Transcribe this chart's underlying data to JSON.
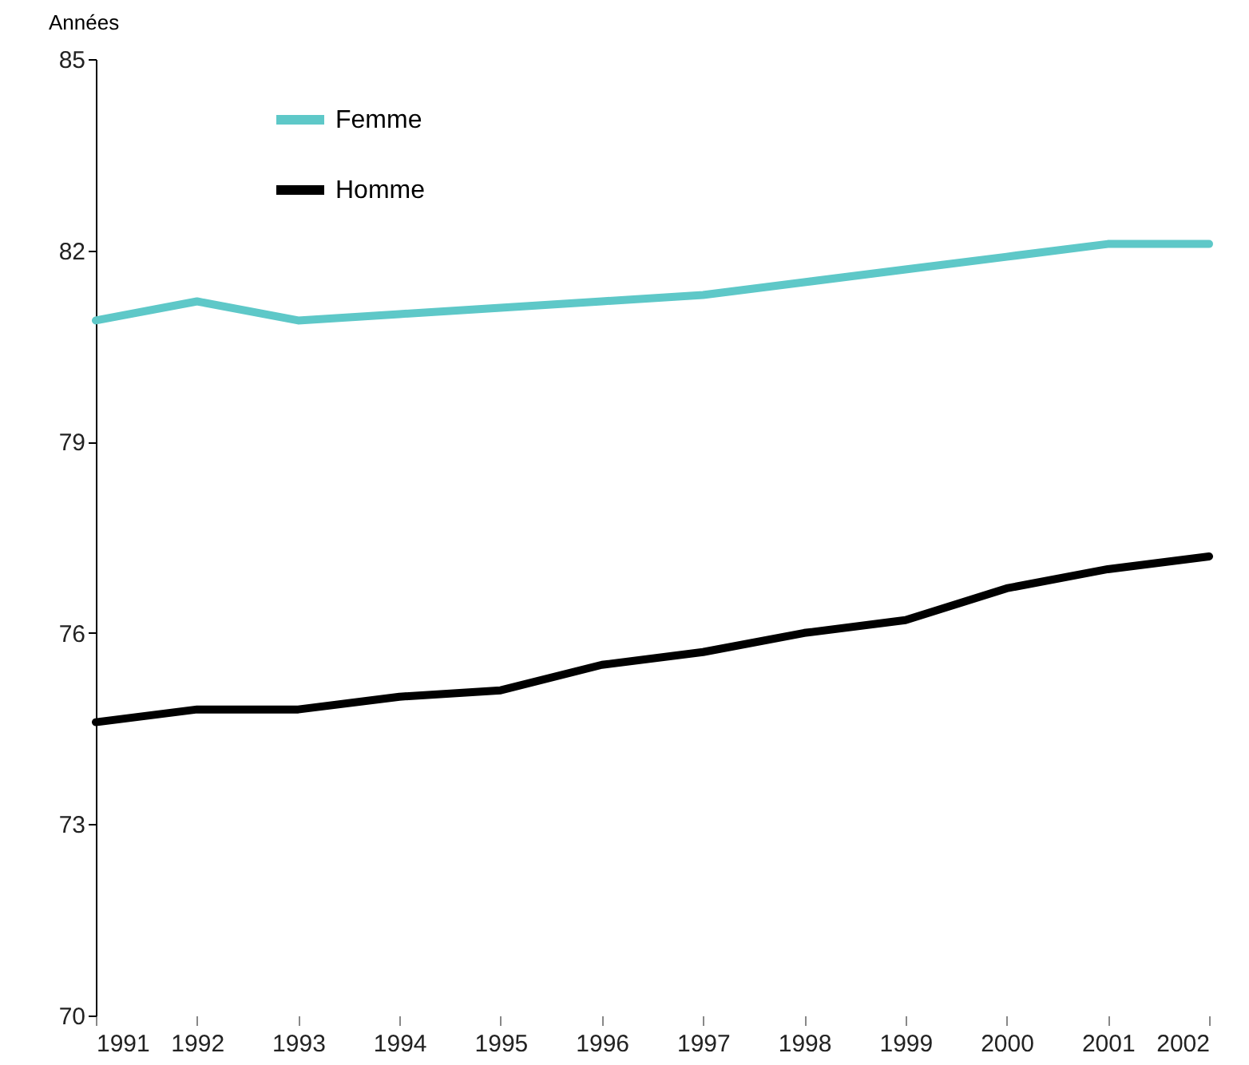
{
  "chart_data": {
    "type": "line",
    "ylabel": "Années",
    "categories": [
      "1991",
      "1992",
      "1993",
      "1994",
      "1995",
      "1996",
      "1997",
      "1998",
      "1999",
      "2000",
      "2001",
      "2002"
    ],
    "series": [
      {
        "name": "Femme",
        "color": "#5ec8c8",
        "values": [
          80.9,
          81.2,
          80.9,
          81.0,
          81.1,
          81.2,
          81.3,
          81.5,
          81.7,
          81.9,
          82.1,
          82.1
        ]
      },
      {
        "name": "Homme",
        "color": "#000000",
        "values": [
          74.6,
          74.8,
          74.8,
          75.0,
          75.1,
          75.5,
          75.7,
          76.0,
          76.2,
          76.7,
          77.0,
          77.2
        ]
      }
    ],
    "ylim": [
      70,
      85
    ],
    "yticks": [
      70,
      73,
      76,
      79,
      82,
      85
    ],
    "grid": false,
    "legend": "top left",
    "marker": "none",
    "line_style": "solid"
  }
}
